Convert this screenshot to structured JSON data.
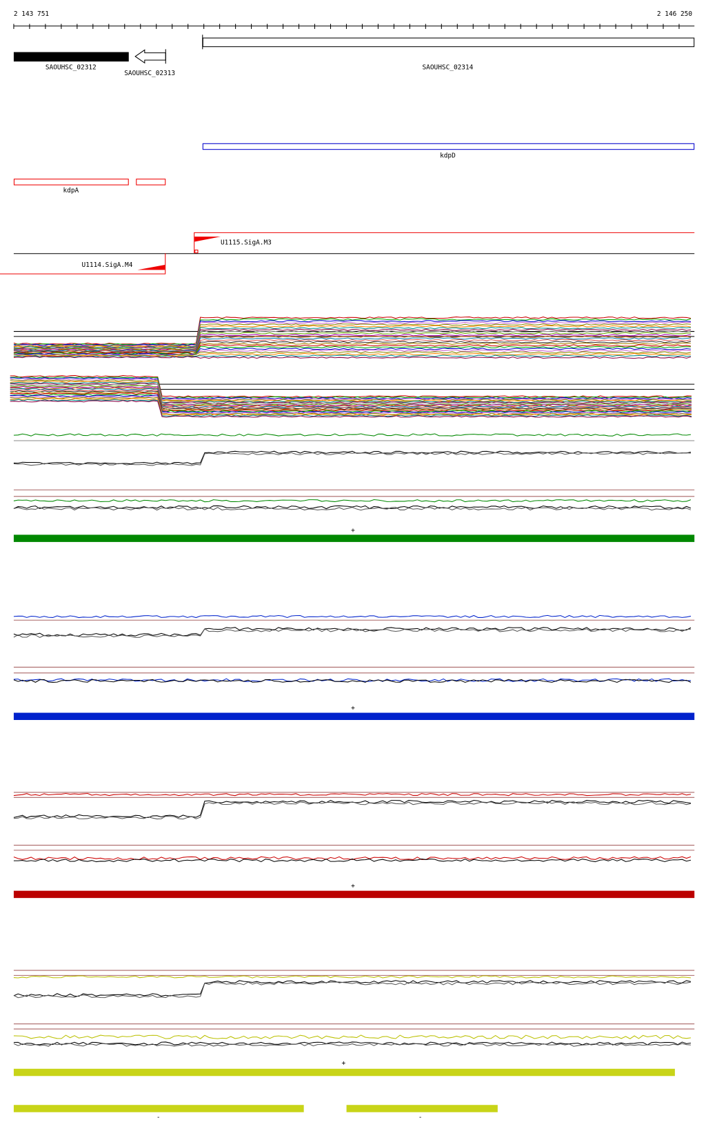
{
  "ruler": {
    "start": "2 143 751",
    "end": "2 146 250"
  },
  "genes": [
    {
      "label": "SAOUHSC_02312"
    },
    {
      "label": "SAOUHSC_02313"
    },
    {
      "label": "SAOUHSC_02314"
    },
    {
      "label": "kdpD"
    },
    {
      "label": "kdpA"
    }
  ],
  "promoters": [
    {
      "label": "U1115.SigA.M3"
    },
    {
      "label": "U1114.SigA.M4"
    }
  ],
  "strand_marks": [
    "+",
    "+",
    "+",
    "+",
    "-",
    "-"
  ]
}
